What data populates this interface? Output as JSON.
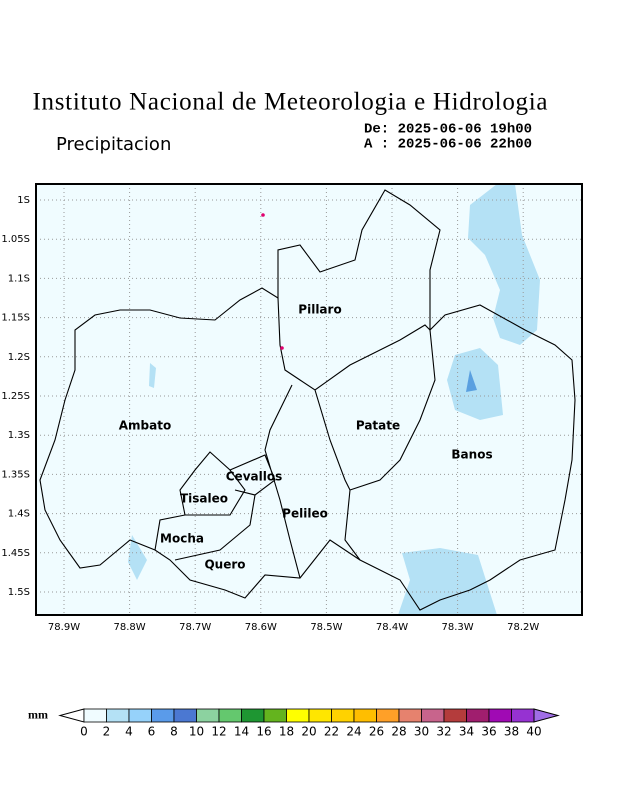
{
  "header": {
    "title": "Instituto Nacional de Meteorologia e Hidrologia",
    "subtitle": "Precipitacion",
    "from": "De: 2025-06-06 19h00",
    "to": "A : 2025-06-06 22h00"
  },
  "map": {
    "x_labels": [
      "78.9W",
      "78.8W",
      "78.7W",
      "78.6W",
      "78.5W",
      "78.4W",
      "78.3W",
      "78.2W"
    ],
    "y_labels": [
      "1S",
      "1.05S",
      "1.1S",
      "1.15S",
      "1.2S",
      "1.25S",
      "1.3S",
      "1.35S",
      "1.4S",
      "1.45S",
      "1.5S"
    ],
    "regions": [
      "Pillaro",
      "Ambato",
      "Patate",
      "Banos",
      "Cevallos",
      "Tisaleo",
      "Pelileo",
      "Mocha",
      "Quero"
    ]
  },
  "colorbar": {
    "unit": "mm",
    "labels": [
      "0",
      "2",
      "4",
      "6",
      "8",
      "10",
      "12",
      "14",
      "16",
      "18",
      "20",
      "22",
      "24",
      "26",
      "28",
      "30",
      "32",
      "34",
      "36",
      "38",
      "40"
    ],
    "under_color": "#ffffff",
    "over_color": "#a06ee6",
    "colors": [
      "#f0fcff",
      "#b4e1f5",
      "#96d2fa",
      "#5a9bea",
      "#4b78d2",
      "#8cd2a0",
      "#64c86e",
      "#1e9632",
      "#64b41e",
      "#ffff00",
      "#ffe600",
      "#ffd200",
      "#ffbe00",
      "#ffa028",
      "#e6826e",
      "#c8648c",
      "#b43c3c",
      "#a01e6e",
      "#a00ab4",
      "#9632d2"
    ]
  }
}
